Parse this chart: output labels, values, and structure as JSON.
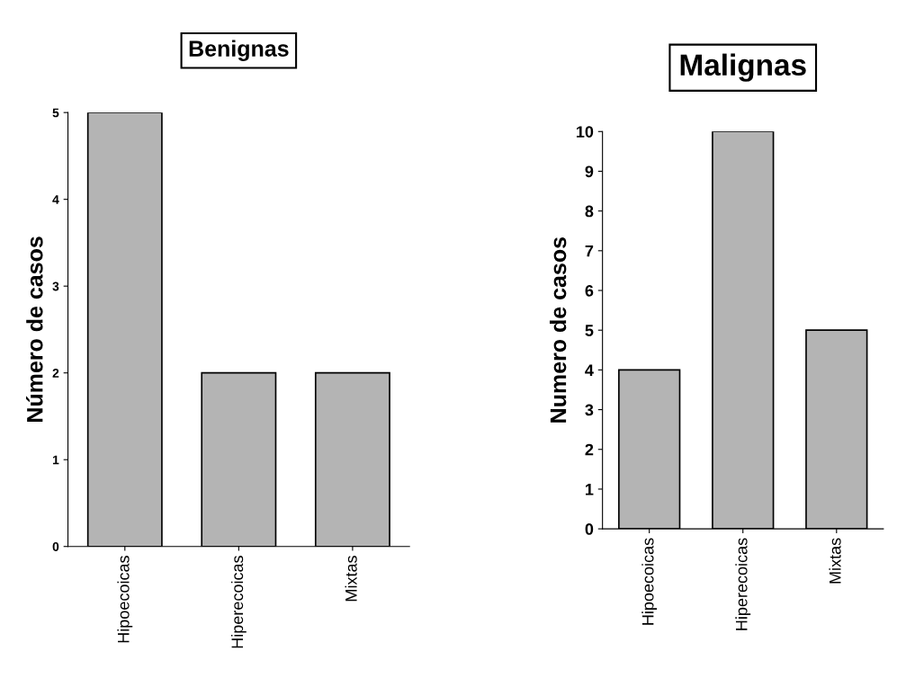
{
  "chart_data": [
    {
      "type": "bar",
      "title": "Benignas",
      "ylabel": "Número de casos",
      "categories": [
        "Hipoecoicas",
        "Hiperecoicas",
        "Mixtas"
      ],
      "values": [
        5,
        2,
        2
      ],
      "color": "#b4b4b4",
      "ylim": [
        0,
        5
      ],
      "yticks": [
        0,
        1,
        2,
        3,
        4,
        5
      ],
      "grid": false,
      "legend": false
    },
    {
      "type": "bar",
      "title": "Malignas",
      "ylabel": "Numero de casos",
      "categories": [
        "Hipoecoicas",
        "Hiperecoicas",
        "Mixtas"
      ],
      "values": [
        4,
        10,
        5
      ],
      "color": "#b4b4b4",
      "ylim": [
        0,
        10
      ],
      "yticks": [
        0,
        1,
        2,
        3,
        4,
        5,
        6,
        7,
        8,
        9,
        10
      ],
      "grid": false,
      "legend": false
    }
  ]
}
